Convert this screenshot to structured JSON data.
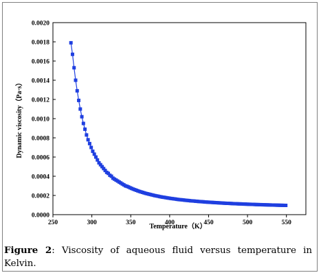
{
  "figure": {
    "label": "Figure 2",
    "caption": ": Viscosity of aqueous fluid versus temperature in Kelvin."
  },
  "chart_data": {
    "type": "line",
    "title": "",
    "xlabel": "Temperature（K）",
    "ylabel": "Dynamic viscosity（Pa·s）",
    "xlim": [
      250,
      575
    ],
    "ylim": [
      0,
      0.002
    ],
    "xticks": [
      "250",
      "300",
      "350",
      "400",
      "450",
      "500",
      "550"
    ],
    "yticks": [
      "0.0000",
      "0.0002",
      "0.0004",
      "0.0006",
      "0.0008",
      "0.0010",
      "0.0012",
      "0.0014",
      "0.0016",
      "0.0018",
      "0.0020"
    ],
    "grid": false,
    "legend": "none",
    "series": [
      {
        "color": "#1f3fe0",
        "marker": "square",
        "x": [
          273.15,
          275.15,
          277.15,
          279.15,
          281.15,
          283.15,
          285.15,
          287.15,
          289.15,
          291.15,
          293.15,
          295.15,
          297.15,
          299.15,
          301.15,
          303.15,
          305.15,
          307.15,
          309.15,
          311.15,
          313.15,
          315.15,
          317.15,
          319.15,
          321.15,
          323.15,
          325.15,
          327.15,
          329.15,
          331.15,
          333.15,
          335.15,
          337.15,
          339.15,
          341.15,
          343.15,
          345.15,
          347.15,
          349.15,
          351.15,
          353.15,
          355.15,
          357.15,
          359.15,
          361.15,
          363.15,
          365.15,
          367.15,
          369.15,
          371.15,
          373.15,
          375.15,
          377.15,
          379.15,
          381.15,
          383.15,
          385.15,
          387.15,
          389.15,
          391.15,
          393.15,
          395.15,
          397.15,
          399.15,
          401.15,
          403.15,
          405.15,
          407.15,
          409.15,
          411.15,
          413.15,
          415.15,
          417.15,
          419.15,
          421.15,
          423.15,
          425.15,
          427.15,
          429.15,
          431.15,
          433.15,
          435.15,
          437.15,
          439.15,
          441.15,
          443.15,
          445.15,
          447.15,
          449.15,
          451.15,
          453.15,
          455.15,
          457.15,
          459.15,
          461.15,
          463.15,
          465.15,
          467.15,
          469.15,
          471.15,
          473.15,
          475.15,
          477.15,
          479.15,
          481.15,
          483.15,
          485.15,
          487.15,
          489.15,
          491.15,
          493.15,
          495.15,
          497.15,
          499.15,
          501.15,
          503.15,
          505.15,
          507.15,
          509.15,
          511.15,
          513.15,
          515.15,
          517.15,
          519.15,
          521.15,
          523.15,
          525.15,
          527.15,
          529.15,
          531.15,
          533.15,
          535.15,
          537.15,
          539.15,
          541.15,
          543.15,
          545.15,
          547.15,
          549.15
        ],
        "y": [
          0.00179,
          0.00167,
          0.00153,
          0.0014,
          0.00129,
          0.00119,
          0.0011,
          0.00102,
          0.00095,
          0.00089,
          0.00083,
          0.00078,
          0.00074,
          0.0007,
          0.00066,
          0.00063,
          0.0006,
          0.00057,
          0.00054,
          0.00052,
          0.0005,
          0.00048,
          0.00046,
          0.00044,
          0.00043,
          0.00041,
          0.0004,
          0.00038,
          0.00037,
          0.00036,
          0.00035,
          0.00034,
          0.00033,
          0.00032,
          0.00031,
          0.0003,
          0.000295,
          0.000288,
          0.00028,
          0.000273,
          0.000266,
          0.00026,
          0.000254,
          0.000248,
          0.000242,
          0.000237,
          0.000232,
          0.000227,
          0.000222,
          0.000218,
          0.000214,
          0.00021,
          0.000206,
          0.000202,
          0.000198,
          0.000195,
          0.000192,
          0.000188,
          0.000185,
          0.000182,
          0.00018,
          0.000177,
          0.000174,
          0.000172,
          0.000169,
          0.000167,
          0.000165,
          0.000163,
          0.00016,
          0.000158,
          0.000156,
          0.000155,
          0.000153,
          0.000151,
          0.000149,
          0.000148,
          0.000146,
          0.000144,
          0.000143,
          0.000142,
          0.00014,
          0.000139,
          0.000137,
          0.000136,
          0.000135,
          0.000134,
          0.000132,
          0.000131,
          0.00013,
          0.000129,
          0.000128,
          0.000127,
          0.000126,
          0.000125,
          0.000124,
          0.000123,
          0.000122,
          0.000121,
          0.00012,
          0.000119,
          0.000118,
          0.000118,
          0.000117,
          0.000116,
          0.000115,
          0.000114,
          0.000114,
          0.000113,
          0.000112,
          0.000112,
          0.000111,
          0.00011,
          0.00011,
          0.000109,
          0.000108,
          0.000108,
          0.000107,
          0.000107,
          0.000106,
          0.000105,
          0.000105,
          0.000104,
          0.000104,
          0.000103,
          0.000103,
          0.000102,
          0.000102,
          0.000101,
          0.000101,
          0.0001,
          0.0001,
          9.95e-05,
          9.9e-05,
          9.85e-05,
          9.8e-05,
          9.76e-05,
          9.72e-05,
          9.68e-05,
          9.64e-05
        ]
      }
    ]
  }
}
